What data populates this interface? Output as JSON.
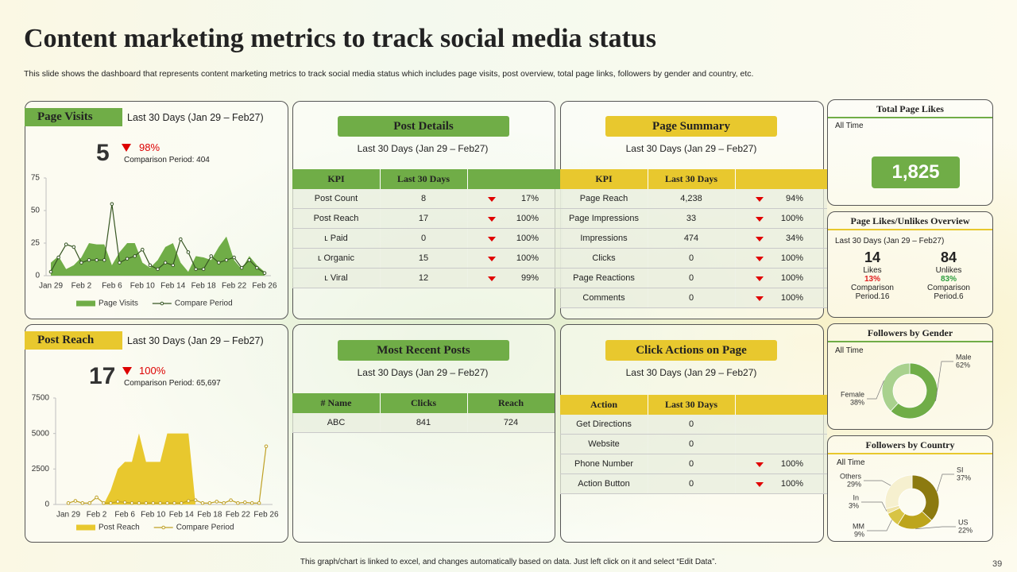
{
  "header": {
    "title": "Content marketing metrics to track social media status",
    "subtitle": "This slide shows the dashboard that represents content marketing metrics to track social media status which includes page visits, post overview, total page links, followers by gender and country,  etc."
  },
  "page_visits": {
    "title": "Page Visits",
    "period": "Last 30 Days (Jan 29 – Feb27)",
    "value": "5",
    "change": "98%",
    "comparison": "Comparison Period: 404",
    "chart": {
      "type": "area",
      "categories": [
        "Jan 29",
        null,
        null,
        null,
        "Feb 2",
        null,
        null,
        null,
        "Feb 6",
        null,
        null,
        null,
        "Feb 10",
        null,
        null,
        null,
        "Feb 14",
        null,
        null,
        null,
        "Feb 18",
        null,
        null,
        null,
        "Feb 22",
        null,
        null,
        null,
        "Feb 26"
      ],
      "series": [
        {
          "name": "Page Visits",
          "type": "area",
          "color": "#70ad47",
          "values": [
            10,
            15,
            5,
            8,
            14,
            25,
            24,
            24,
            8,
            18,
            25,
            25,
            10,
            6,
            12,
            22,
            25,
            10,
            3,
            15,
            14,
            12,
            22,
            30,
            12,
            5,
            15,
            8,
            3
          ]
        },
        {
          "name": "Compare Period",
          "type": "line",
          "color": "#375623",
          "values": [
            3,
            14,
            24,
            22,
            10,
            12,
            12,
            12,
            55,
            10,
            13,
            15,
            20,
            8,
            5,
            10,
            8,
            28,
            18,
            5,
            5,
            15,
            10,
            12,
            14,
            6,
            12,
            6,
            2
          ]
        }
      ],
      "ylim": [
        0,
        75
      ],
      "yticks": [
        0,
        25,
        50,
        75
      ],
      "grid": false
    }
  },
  "post_reach": {
    "title": "Post Reach",
    "period": "Last 30 Days (Jan 29 – Feb27)",
    "value": "17",
    "change": "100%",
    "comparison": "Comparison Period: 65,697",
    "chart": {
      "type": "area",
      "categories": [
        "Jan 29",
        null,
        null,
        null,
        "Feb 2",
        null,
        null,
        null,
        "Feb 6",
        null,
        null,
        null,
        "Feb 10",
        null,
        null,
        null,
        "Feb 14",
        null,
        null,
        null,
        "Feb 18",
        null,
        null,
        null,
        "Feb 22",
        null,
        null,
        null,
        "Feb 26"
      ],
      "series": [
        {
          "name": "Post Reach",
          "type": "area",
          "color": "#e8c82e",
          "values": [
            0,
            0,
            0,
            0,
            0,
            0,
            1000,
            2500,
            3000,
            3000,
            5000,
            3000,
            3000,
            3000,
            5000,
            5000,
            5000,
            5000,
            0,
            0,
            0,
            0,
            0,
            0,
            0,
            0,
            0,
            0,
            0
          ]
        },
        {
          "name": "Compare Period",
          "type": "line",
          "color": "#bfa126",
          "values": [
            100,
            250,
            100,
            100,
            500,
            100,
            100,
            200,
            150,
            100,
            100,
            100,
            100,
            100,
            100,
            100,
            100,
            250,
            300,
            100,
            100,
            200,
            100,
            300,
            100,
            150,
            100,
            100,
            4100
          ]
        }
      ],
      "ylim": [
        0,
        7500
      ],
      "yticks": [
        0,
        2500,
        5000,
        7500
      ],
      "grid": false
    }
  },
  "post_details": {
    "title": "Post Details",
    "period": "Last 30 Days (Jan 29 – Feb27)",
    "table": {
      "header": [
        "KPI",
        "Last 30 Days"
      ],
      "rows": [
        [
          "Post Count",
          "8",
          "17%"
        ],
        [
          "Post Reach",
          "17",
          "100%"
        ],
        [
          "ʟ Paid",
          "0",
          "100%"
        ],
        [
          "ʟ Organic",
          "15",
          "100%"
        ],
        [
          "ʟ Viral",
          "12",
          "99%"
        ]
      ]
    }
  },
  "page_summary": {
    "title": "Page Summary",
    "period": "Last 30 Days (Jan 29 – Feb27)",
    "table": {
      "header": [
        "KPI",
        "Last 30 Days"
      ],
      "rows": [
        [
          "Page Reach",
          "4,238",
          "94%"
        ],
        [
          "Page Impressions",
          "33",
          "100%"
        ],
        [
          "Impressions",
          "474",
          "34%"
        ],
        [
          "Clicks",
          "0",
          "100%"
        ],
        [
          "Page Reactions",
          "0",
          "100%"
        ],
        [
          "Comments",
          "0",
          "100%"
        ]
      ]
    }
  },
  "most_recent_posts": {
    "title": "Most Recent Posts",
    "period": "Last 30 Days (Jan 29 – Feb27)",
    "table": {
      "header": [
        "# Name",
        "Clicks",
        "Reach"
      ],
      "rows": [
        [
          "ABC",
          "841",
          "724"
        ]
      ]
    }
  },
  "click_actions": {
    "title": "Click Actions on Page",
    "period": "Last 30 Days (Jan 29 – Feb27)",
    "table": {
      "header": [
        "Action",
        "Last 30 Days"
      ],
      "rows": [
        [
          "Get Directions",
          "0"
        ],
        [
          "Website",
          "0"
        ],
        [
          "Phone Number",
          "0",
          "100%"
        ],
        [
          "Action Button",
          "0",
          "100%"
        ]
      ]
    }
  },
  "total_page_likes": {
    "title": "Total Page Likes",
    "subtitle": "All Time",
    "value": "1,825"
  },
  "likes_overview": {
    "title": "Page Likes/Unlikes  Overview",
    "period": "Last 30 Days (Jan 29 – Feb27)",
    "likes": {
      "value": "14",
      "label": "Likes",
      "change": "13%",
      "comparison": "Comparison Period.16"
    },
    "unlikes": {
      "value": "84",
      "label": "Unlikes",
      "change": "83%",
      "comparison": "Comparison Period.6"
    }
  },
  "followers_gender": {
    "title": "Followers by Gender",
    "subtitle": "All Time",
    "chart": {
      "type": "pie",
      "categories": [
        "Male",
        "Female"
      ],
      "values": [
        62,
        38
      ],
      "value_labels": [
        "62%",
        "38%"
      ],
      "colors": [
        "#70ad47",
        "#a9d18e"
      ]
    }
  },
  "followers_country": {
    "title": "Followers by Country",
    "subtitle": "All Time",
    "chart": {
      "type": "pie",
      "categories": [
        "SI",
        "US",
        "MM",
        "In",
        "Others"
      ],
      "values": [
        37,
        22,
        9,
        3,
        29
      ],
      "value_labels": [
        "37%",
        "22%",
        "9%",
        "3%",
        "29%"
      ],
      "colors": [
        "#8c7a10",
        "#bda51c",
        "#d8c445",
        "#efe3a6",
        "#f6f0cf"
      ]
    }
  },
  "footer": {
    "note": "This graph/chart is linked to excel, and changes automatically based on data. Just left click on it and select “Edit Data”.",
    "page_number": "39"
  }
}
